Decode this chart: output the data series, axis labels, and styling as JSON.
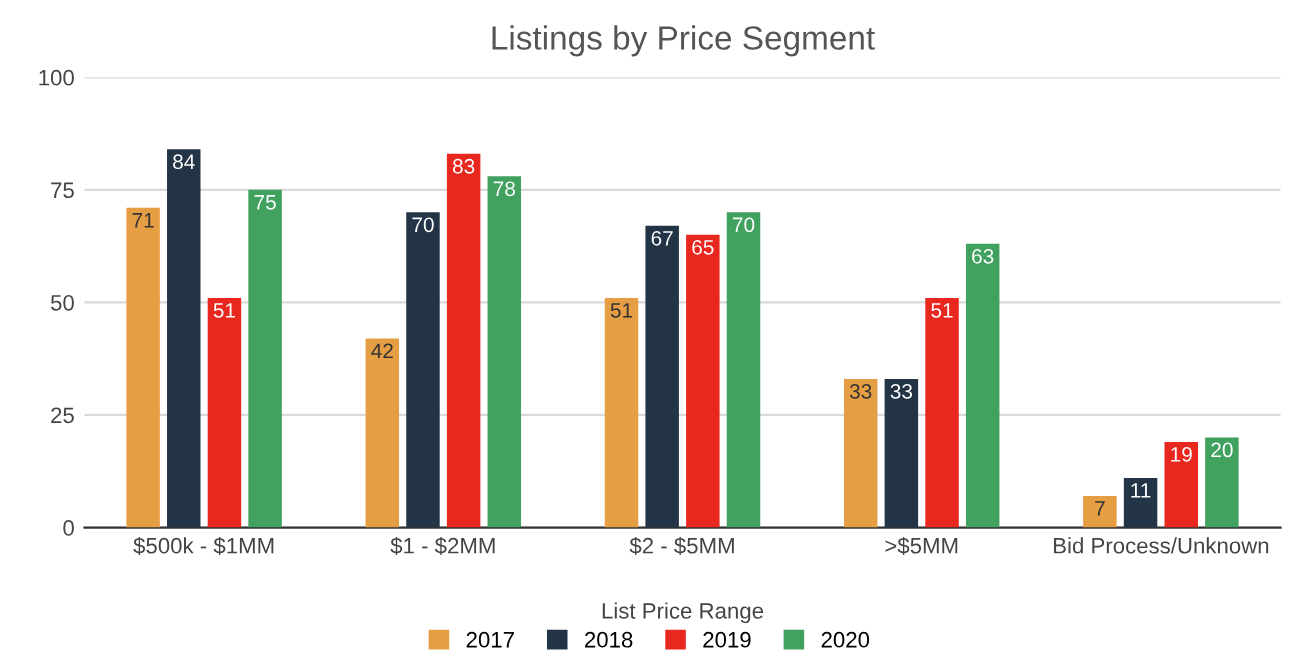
{
  "chart_data": {
    "type": "bar",
    "title": "Listings by Price Segment",
    "xlabel": "List Price Range",
    "categories": [
      "$500k - $1MM",
      "$1 - $2MM",
      "$2 - $5MM",
      ">$5MM",
      "Bid Process/Unknown"
    ],
    "series": [
      {
        "name": "2017",
        "color": "#e69e45",
        "values": [
          71,
          42,
          51,
          33,
          7
        ]
      },
      {
        "name": "2018",
        "color": "#243447",
        "values": [
          84,
          70,
          67,
          33,
          11
        ]
      },
      {
        "name": "2019",
        "color": "#e8271f",
        "values": [
          51,
          83,
          65,
          51,
          19
        ]
      },
      {
        "name": "2020",
        "color": "#41a15f",
        "values": [
          75,
          78,
          70,
          63,
          20
        ]
      }
    ],
    "ylim": [
      0,
      100
    ],
    "yticks": [
      0,
      25,
      50,
      75,
      100
    ],
    "grid": "y",
    "legend": "bottom",
    "data_labels": true
  }
}
